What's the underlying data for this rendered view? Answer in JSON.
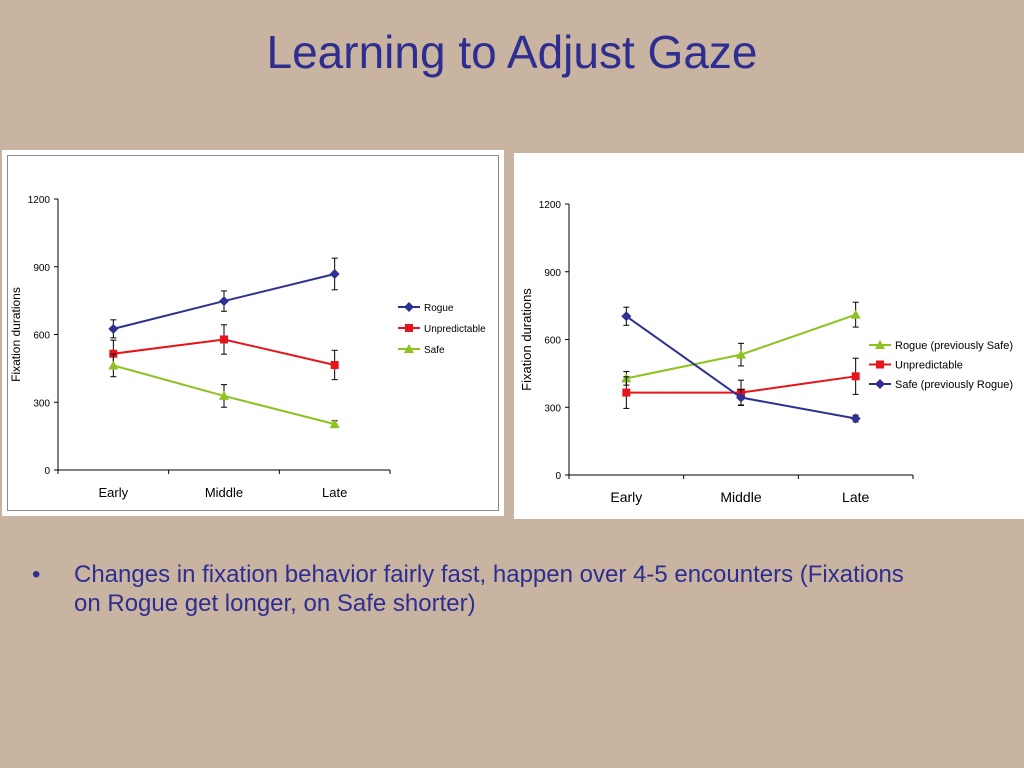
{
  "slide": {
    "title": "Learning to Adjust Gaze",
    "bullets": [
      "Changes in fixation behavior fairly fast, happen over 4-5 encounters (Fixations on Rogue get longer, on Safe shorter)"
    ]
  },
  "chart_data": [
    {
      "type": "line",
      "title": "",
      "xlabel": "",
      "ylabel": "Fixation durations",
      "categories": [
        "Early",
        "Middle",
        "Late"
      ],
      "ylim": [
        0,
        1200
      ],
      "yticks": [
        0,
        300,
        600,
        900,
        1200
      ],
      "grid": false,
      "legend": "right",
      "series": [
        {
          "name": "Rogue",
          "color": "#2e3192",
          "marker": "diamond",
          "values": [
            625,
            748,
            868
          ],
          "errors": [
            40,
            45,
            70
          ]
        },
        {
          "name": "Unpredictable",
          "color": "#e8141b",
          "marker": "square",
          "values": [
            515,
            578,
            465
          ],
          "errors": [
            60,
            65,
            65
          ]
        },
        {
          "name": "Safe",
          "color": "#8dc21f",
          "marker": "triangle",
          "values": [
            463,
            328,
            203
          ],
          "errors": [
            50,
            50,
            15
          ]
        }
      ]
    },
    {
      "type": "line",
      "title": "",
      "xlabel": "",
      "ylabel": "Fixation durations",
      "categories": [
        "Early",
        "Middle",
        "Late"
      ],
      "ylim": [
        0,
        1200
      ],
      "yticks": [
        0,
        300,
        600,
        900,
        1200
      ],
      "grid": false,
      "legend": "right",
      "series": [
        {
          "name": "Rogue (previously Safe)",
          "color": "#8dc21f",
          "marker": "triangle",
          "values": [
            428,
            533,
            710
          ],
          "errors": [
            30,
            50,
            55
          ]
        },
        {
          "name": "Unpredictable",
          "color": "#e8141b",
          "marker": "square",
          "values": [
            365,
            365,
            437
          ],
          "errors": [
            70,
            55,
            80
          ]
        },
        {
          "name": "Safe (previously Rogue)",
          "color": "#2e3192",
          "marker": "diamond",
          "values": [
            703,
            343,
            250
          ],
          "errors": [
            40,
            35,
            15
          ]
        }
      ]
    }
  ]
}
